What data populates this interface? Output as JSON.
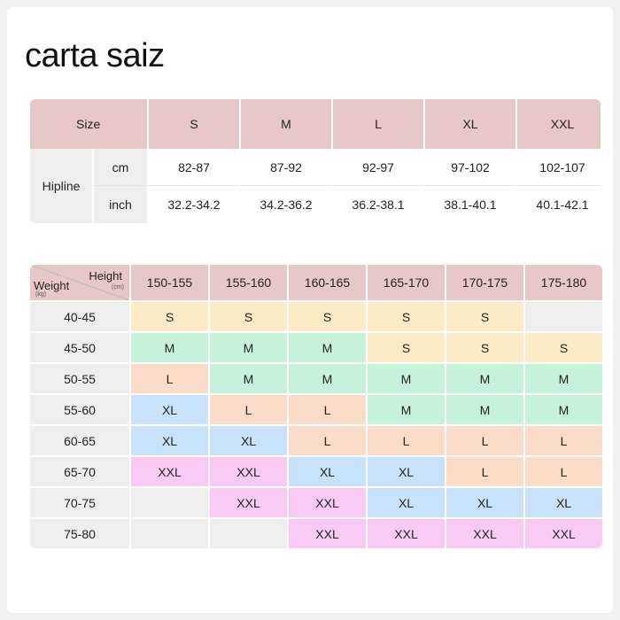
{
  "title": "carta saiz",
  "size_table": {
    "size_label": "Size",
    "sizes": [
      "S",
      "M",
      "L",
      "XL",
      "XXL"
    ],
    "hip_label": "Hipline",
    "rows": [
      {
        "unit": "cm",
        "values": [
          "82-87",
          "87-92",
          "92-97",
          "97-102",
          "102-107"
        ]
      },
      {
        "unit": "inch",
        "values": [
          "32.2-34.2",
          "34.2-36.2",
          "36.2-38.1",
          "38.1-40.1",
          "40.1-42.1"
        ]
      }
    ]
  },
  "wh_table": {
    "height_label": "Height",
    "height_unit": "(cm)",
    "weight_label": "Weight",
    "weight_unit": "(kg)",
    "heights": [
      "150-155",
      "155-160",
      "160-165",
      "165-170",
      "170-175",
      "175-180"
    ],
    "rows": [
      {
        "weight": "40-45",
        "cells": [
          "S",
          "S",
          "S",
          "S",
          "S",
          ""
        ]
      },
      {
        "weight": "45-50",
        "cells": [
          "M",
          "M",
          "M",
          "S",
          "S",
          "S"
        ]
      },
      {
        "weight": "50-55",
        "cells": [
          "L",
          "M",
          "M",
          "M",
          "M",
          "M"
        ]
      },
      {
        "weight": "55-60",
        "cells": [
          "XL",
          "L",
          "L",
          "M",
          "M",
          "M"
        ]
      },
      {
        "weight": "60-65",
        "cells": [
          "XL",
          "XL",
          "L",
          "L",
          "L",
          "L"
        ]
      },
      {
        "weight": "65-70",
        "cells": [
          "XXL",
          "XXL",
          "XL",
          "XL",
          "L",
          "L"
        ]
      },
      {
        "weight": "70-75",
        "cells": [
          "",
          "XXL",
          "XXL",
          "XL",
          "XL",
          "XL"
        ]
      },
      {
        "weight": "75-80",
        "cells": [
          "",
          "",
          "XXL",
          "XXL",
          "XXL",
          "XXL"
        ]
      }
    ]
  },
  "colors": {
    "header": "#e7c8c6",
    "label": "#eeeeee",
    "S": "#fbecc7",
    "M": "#c6f2da",
    "L": "#fbdcc8",
    "XL": "#c9e2fb",
    "XXL": "#f9cbf4"
  }
}
